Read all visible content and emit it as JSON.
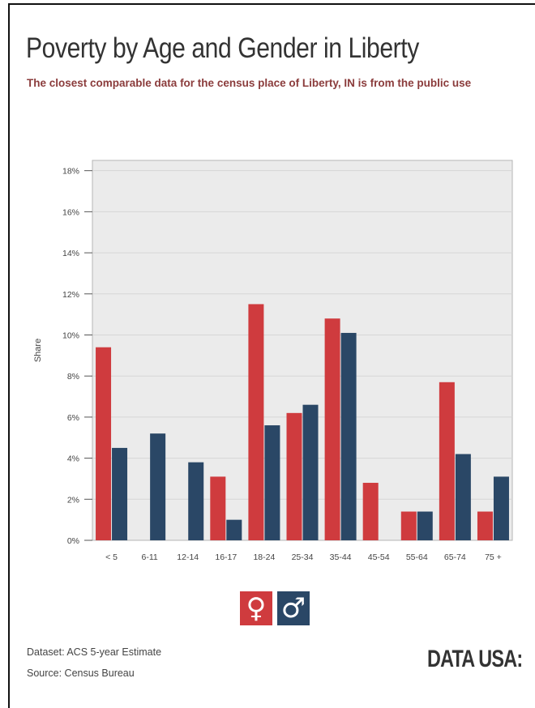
{
  "title": "Poverty by Age and Gender in Liberty",
  "subtitle": "The closest comparable data for the census place of Liberty, IN is from the public use",
  "legend": {
    "female_symbol": "♀",
    "male_symbol": "♂"
  },
  "footer": {
    "dataset": "Dataset: ACS 5-year Estimate",
    "source": "Source: Census Bureau"
  },
  "logo": "DATA USA:",
  "colors": {
    "female": "#cf3b3e",
    "male": "#2a4766",
    "plot_bg": "#ebebeb",
    "grid": "#d6d6d6"
  },
  "chart_data": {
    "type": "bar",
    "ylabel": "Share",
    "xlabel": "",
    "ylim": [
      0,
      18.5
    ],
    "yticks": [
      0,
      2,
      4,
      6,
      8,
      10,
      12,
      14,
      16,
      18
    ],
    "ytick_labels": [
      "0%",
      "2%",
      "4%",
      "6%",
      "8%",
      "10%",
      "12%",
      "14%",
      "16%",
      "18%"
    ],
    "grid": true,
    "legend_position": "bottom-center",
    "categories": [
      "< 5",
      "6-11",
      "12-14",
      "16-17",
      "18-24",
      "25-34",
      "35-44",
      "45-54",
      "55-64",
      "65-74",
      "75 +"
    ],
    "series": [
      {
        "key": "female",
        "values": [
          9.4,
          0,
          0,
          3.1,
          11.5,
          6.2,
          10.8,
          2.8,
          1.4,
          7.7,
          1.4
        ]
      },
      {
        "key": "male",
        "values": [
          4.5,
          5.2,
          3.8,
          1.0,
          5.6,
          6.6,
          10.1,
          0,
          1.4,
          4.2,
          3.1
        ]
      }
    ]
  }
}
